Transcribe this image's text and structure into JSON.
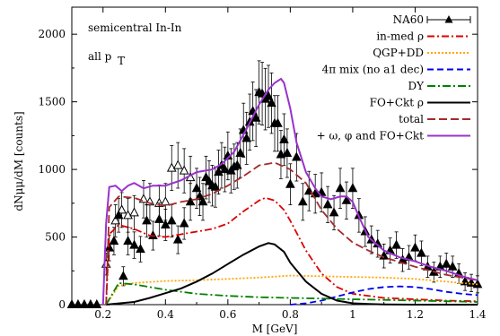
{
  "chart_data": {
    "type": "line",
    "xlabel": "M [GeV]",
    "ylabel": "dNμμ/dM [counts]",
    "xlim": [
      0.1,
      1.4
    ],
    "ylim": [
      0,
      2200
    ],
    "xticks": [
      "0.2",
      "0.4",
      "0.6",
      "0.8",
      "1",
      "1.2",
      "1.4"
    ],
    "yticks": [
      "0",
      "500",
      "1000",
      "1500",
      "2000"
    ],
    "annotations": [
      "semicentral In-In",
      "all p",
      "T"
    ],
    "legend_position": "top-right",
    "series": [
      {
        "name": "in-med ρ",
        "color": "#dd0000",
        "dash": "8,3,2,3",
        "x": [
          0.21,
          0.22,
          0.25,
          0.3,
          0.35,
          0.4,
          0.45,
          0.5,
          0.55,
          0.6,
          0.65,
          0.7,
          0.72,
          0.75,
          0.78,
          0.8,
          0.85,
          0.9,
          0.95,
          1.0,
          1.1,
          1.2,
          1.3,
          1.4
        ],
        "y": [
          0,
          520,
          590,
          560,
          510,
          500,
          520,
          540,
          560,
          600,
          690,
          770,
          790,
          770,
          700,
          620,
          400,
          230,
          130,
          80,
          50,
          40,
          30,
          25
        ]
      },
      {
        "name": "QGP+DD",
        "color": "#ffa500",
        "dash": "2,2",
        "x": [
          0.21,
          0.25,
          0.3,
          0.4,
          0.5,
          0.6,
          0.7,
          0.8,
          0.9,
          1.0,
          1.1,
          1.2,
          1.3,
          1.4
        ],
        "y": [
          0,
          140,
          160,
          175,
          180,
          190,
          200,
          215,
          210,
          205,
          200,
          190,
          170,
          150
        ]
      },
      {
        "name": "4π mix (no a1 dec)",
        "color": "#0000ee",
        "dash": "7,4",
        "x": [
          0.8,
          0.85,
          0.9,
          0.95,
          1.0,
          1.05,
          1.1,
          1.15,
          1.2,
          1.25,
          1.3,
          1.35,
          1.4
        ],
        "y": [
          0,
          10,
          30,
          60,
          90,
          115,
          130,
          135,
          130,
          115,
          95,
          80,
          70
        ]
      },
      {
        "name": "DY",
        "color": "#008000",
        "dash": "9,3,2,3",
        "x": [
          0.21,
          0.25,
          0.3,
          0.4,
          0.5,
          0.6,
          0.7,
          0.8,
          0.9,
          1.0,
          1.1,
          1.2,
          1.3,
          1.4
        ],
        "y": [
          0,
          160,
          150,
          110,
          80,
          65,
          55,
          50,
          45,
          40,
          35,
          30,
          25,
          20
        ]
      },
      {
        "name": "FO+Ckt ρ",
        "color": "#000000",
        "dash": "",
        "x": [
          0.21,
          0.3,
          0.35,
          0.4,
          0.45,
          0.5,
          0.55,
          0.6,
          0.65,
          0.7,
          0.73,
          0.75,
          0.78,
          0.8,
          0.85,
          0.9,
          0.95,
          1.0,
          1.05,
          1.1,
          1.2,
          1.3,
          1.4
        ],
        "y": [
          0,
          20,
          50,
          85,
          120,
          170,
          230,
          300,
          370,
          430,
          455,
          445,
          390,
          310,
          170,
          80,
          30,
          10,
          5,
          2,
          0,
          0,
          0
        ]
      },
      {
        "name": "total",
        "color": "#a52a2a",
        "dash": "9,4",
        "x": [
          0.21,
          0.22,
          0.25,
          0.3,
          0.35,
          0.4,
          0.45,
          0.5,
          0.55,
          0.6,
          0.65,
          0.7,
          0.75,
          0.8,
          0.85,
          0.9,
          0.95,
          1.0,
          1.05,
          1.1,
          1.2,
          1.3,
          1.4
        ],
        "y": [
          0,
          720,
          800,
          790,
          750,
          730,
          760,
          780,
          820,
          880,
          950,
          1030,
          1050,
          1000,
          900,
          700,
          560,
          460,
          400,
          350,
          280,
          220,
          180
        ]
      },
      {
        "name": "+ ω, φ and FO+Ckt",
        "color": "#9932cc",
        "dash": "",
        "x": [
          0.2,
          0.21,
          0.22,
          0.24,
          0.26,
          0.28,
          0.3,
          0.33,
          0.36,
          0.4,
          0.45,
          0.5,
          0.55,
          0.58,
          0.62,
          0.66,
          0.7,
          0.73,
          0.75,
          0.77,
          0.78,
          0.8,
          0.82,
          0.85,
          0.88,
          0.9,
          0.93,
          0.96,
          0.98,
          1.0,
          1.02,
          1.05,
          1.1,
          1.15,
          1.2,
          1.25,
          1.3,
          1.35,
          1.4
        ],
        "y": [
          0,
          600,
          870,
          880,
          840,
          880,
          900,
          860,
          880,
          880,
          920,
          980,
          1000,
          1040,
          1130,
          1300,
          1480,
          1590,
          1640,
          1670,
          1640,
          1450,
          1200,
          980,
          860,
          800,
          780,
          800,
          800,
          760,
          650,
          500,
          400,
          350,
          320,
          280,
          250,
          210,
          180
        ]
      }
    ],
    "data_points": {
      "name": "NA60",
      "filled": [
        [
          0.22,
          420
        ],
        [
          0.235,
          470
        ],
        [
          0.25,
          660
        ],
        [
          0.265,
          210
        ],
        [
          0.28,
          470
        ],
        [
          0.3,
          440
        ],
        [
          0.32,
          410
        ],
        [
          0.34,
          620
        ],
        [
          0.36,
          510
        ],
        [
          0.38,
          630
        ],
        [
          0.4,
          590
        ],
        [
          0.42,
          620
        ],
        [
          0.44,
          480
        ],
        [
          0.46,
          600
        ],
        [
          0.48,
          760
        ],
        [
          0.5,
          860
        ],
        [
          0.51,
          800
        ],
        [
          0.52,
          760
        ],
        [
          0.53,
          940
        ],
        [
          0.54,
          910
        ],
        [
          0.55,
          880
        ],
        [
          0.56,
          870
        ],
        [
          0.57,
          980
        ],
        [
          0.58,
          1030
        ],
        [
          0.59,
          1000
        ],
        [
          0.6,
          1100
        ],
        [
          0.61,
          990
        ],
        [
          0.62,
          1020
        ],
        [
          0.63,
          1030
        ],
        [
          0.64,
          1120
        ],
        [
          0.65,
          1290
        ],
        [
          0.66,
          1230
        ],
        [
          0.67,
          1350
        ],
        [
          0.68,
          1430
        ],
        [
          0.69,
          1380
        ],
        [
          0.7,
          1570
        ],
        [
          0.71,
          1560
        ],
        [
          0.72,
          1520
        ],
        [
          0.73,
          1540
        ],
        [
          0.74,
          1490
        ],
        [
          0.75,
          1340
        ],
        [
          0.76,
          1340
        ],
        [
          0.77,
          1110
        ],
        [
          0.78,
          1220
        ],
        [
          0.79,
          1120
        ],
        [
          0.8,
          890
        ],
        [
          0.82,
          1090
        ],
        [
          0.84,
          760
        ],
        [
          0.86,
          840
        ],
        [
          0.88,
          820
        ],
        [
          0.9,
          830
        ],
        [
          0.92,
          740
        ],
        [
          0.94,
          680
        ],
        [
          0.96,
          860
        ],
        [
          0.98,
          770
        ],
        [
          1.0,
          860
        ],
        [
          1.02,
          660
        ],
        [
          1.04,
          540
        ],
        [
          1.06,
          480
        ],
        [
          1.08,
          450
        ],
        [
          1.1,
          360
        ],
        [
          1.12,
          400
        ],
        [
          1.14,
          440
        ],
        [
          1.16,
          330
        ],
        [
          1.18,
          350
        ],
        [
          1.2,
          420
        ],
        [
          1.22,
          380
        ],
        [
          1.24,
          280
        ],
        [
          1.26,
          240
        ],
        [
          1.28,
          280
        ],
        [
          1.3,
          300
        ],
        [
          1.32,
          280
        ],
        [
          1.34,
          230
        ],
        [
          1.36,
          170
        ],
        [
          1.38,
          160
        ],
        [
          1.4,
          150
        ]
      ],
      "open": [
        [
          0.21,
          300
        ],
        [
          0.24,
          620
        ],
        [
          0.26,
          700
        ],
        [
          0.28,
          660
        ],
        [
          0.3,
          680
        ],
        [
          0.33,
          780
        ],
        [
          0.35,
          760
        ],
        [
          0.38,
          750
        ],
        [
          0.4,
          760
        ],
        [
          0.42,
          1010
        ],
        [
          0.44,
          1030
        ],
        [
          0.46,
          990
        ],
        [
          0.48,
          940
        ]
      ],
      "zero_points": [
        0.1,
        0.12,
        0.14,
        0.16,
        0.18
      ]
    }
  }
}
